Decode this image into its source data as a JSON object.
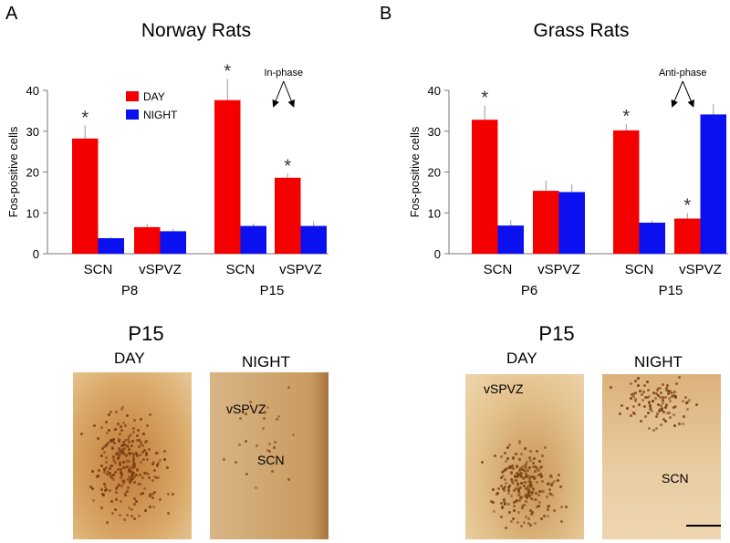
{
  "colors": {
    "day": "#f50000",
    "night": "#0a10f0"
  },
  "panels": [
    {
      "letter": "A",
      "title": "Norway Rats",
      "micro_age": "P15",
      "micro_labels": {
        "day": "DAY",
        "night": "NIGHT",
        "region1": "vSPVZ",
        "region2": "SCN"
      }
    },
    {
      "letter": "B",
      "title": "Grass Rats",
      "micro_age": "P15",
      "micro_labels": {
        "day": "DAY",
        "night": "NIGHT",
        "region1": "vSPVZ",
        "region2": "SCN"
      }
    }
  ],
  "chart_data": [
    {
      "type": "bar",
      "title": "Norway Rats",
      "ylabel": "Fos-positive cells",
      "ylim": [
        0,
        40
      ],
      "yticks": [
        0,
        10,
        20,
        30,
        40
      ],
      "legend": [
        "DAY",
        "NIGHT"
      ],
      "legend_position": "top-left-center",
      "groups": [
        {
          "age": "P8",
          "regions": [
            "SCN",
            "vSPVZ"
          ]
        },
        {
          "age": "P15",
          "regions": [
            "SCN",
            "vSPVZ"
          ]
        }
      ],
      "series": [
        {
          "name": "DAY",
          "values": [
            28.2,
            6.5,
            37.6,
            18.6
          ],
          "errors": [
            3.2,
            0.8,
            5.2,
            1.0
          ]
        },
        {
          "name": "NIGHT",
          "values": [
            3.8,
            5.5,
            6.8,
            6.8
          ],
          "errors": [
            0.3,
            0.6,
            0.6,
            1.2
          ]
        }
      ],
      "significant_day": [
        true,
        false,
        true,
        true
      ],
      "significant_night": [
        false,
        false,
        false,
        false
      ],
      "annotation": "In-phase"
    },
    {
      "type": "bar",
      "title": "Grass Rats",
      "ylabel": "Fos-positive cells",
      "ylim": [
        0,
        40
      ],
      "yticks": [
        0,
        10,
        20,
        30,
        40
      ],
      "groups": [
        {
          "age": "P6",
          "regions": [
            "SCN",
            "vSPVZ"
          ]
        },
        {
          "age": "P15",
          "regions": [
            "SCN",
            "vSPVZ"
          ]
        }
      ],
      "series": [
        {
          "name": "DAY",
          "values": [
            32.8,
            15.4,
            30.2,
            8.6
          ],
          "errors": [
            3.5,
            2.5,
            1.5,
            1.4
          ]
        },
        {
          "name": "NIGHT",
          "values": [
            6.9,
            15.1,
            7.6,
            34.1
          ],
          "errors": [
            1.3,
            2.0,
            0.6,
            2.5
          ]
        }
      ],
      "significant_day": [
        true,
        false,
        true,
        true
      ],
      "significant_night": [
        false,
        false,
        false,
        false
      ],
      "annotation": "Anti-phase"
    }
  ]
}
